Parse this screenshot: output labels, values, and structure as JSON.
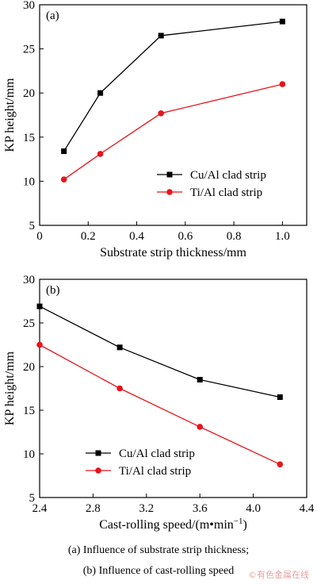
{
  "chart_data": [
    {
      "type": "line",
      "panel_label": "(a)",
      "xlabel": "Substrate strip thickness/mm",
      "ylabel": "KP height/mm",
      "xlim": [
        0,
        1.1
      ],
      "ylim": [
        5,
        30
      ],
      "x_ticks": [
        0,
        0.2,
        0.4,
        0.6,
        0.8,
        1.0
      ],
      "x_tick_labels": [
        "0",
        "0.2",
        "0.4",
        "0.6",
        "0.8",
        "1.0"
      ],
      "y_ticks": [
        5,
        10,
        15,
        20,
        25,
        30
      ],
      "y_tick_labels": [
        "5",
        "10",
        "15",
        "20",
        "25",
        "30"
      ],
      "legend_position": "center-right",
      "x": [
        0.1,
        0.25,
        0.5,
        1.0
      ],
      "series": [
        {
          "name": "Cu/Al clad strip",
          "marker": "square",
          "color": "#000000",
          "values": [
            13.4,
            20.0,
            26.5,
            28.1
          ]
        },
        {
          "name": "Ti/Al clad strip",
          "marker": "circle",
          "color": "#e8141b",
          "values": [
            10.2,
            13.1,
            17.7,
            21.0
          ]
        }
      ]
    },
    {
      "type": "line",
      "panel_label": "(b)",
      "xlabel": "Cast-rolling speed/(m•min",
      "xlabel_sup": "−1",
      "xlabel_end": ")",
      "ylabel": "KP height/mm",
      "xlim": [
        2.4,
        4.4
      ],
      "ylim": [
        5,
        30
      ],
      "x_ticks": [
        2.4,
        2.8,
        3.2,
        3.6,
        4.0,
        4.4
      ],
      "x_tick_labels": [
        "2.4",
        "2.8",
        "3.2",
        "3.6",
        "4.0",
        "4.4"
      ],
      "y_ticks": [
        5,
        10,
        15,
        20,
        25,
        30
      ],
      "y_tick_labels": [
        "5",
        "10",
        "15",
        "20",
        "25",
        "30"
      ],
      "legend_position": "bottom-left",
      "x": [
        2.4,
        3.0,
        3.6,
        4.2
      ],
      "series": [
        {
          "name": "Cu/Al clad strip",
          "marker": "square",
          "color": "#000000",
          "values": [
            26.9,
            22.2,
            18.5,
            16.5
          ]
        },
        {
          "name": "Ti/Al clad strip",
          "marker": "circle",
          "color": "#e8141b",
          "values": [
            22.5,
            17.5,
            13.1,
            8.8
          ]
        }
      ]
    }
  ],
  "captions": {
    "a": "(a) Influence of substrate strip thickness;",
    "b": "(b) Influence of cast-rolling speed"
  },
  "watermark": "©有色金属在线"
}
